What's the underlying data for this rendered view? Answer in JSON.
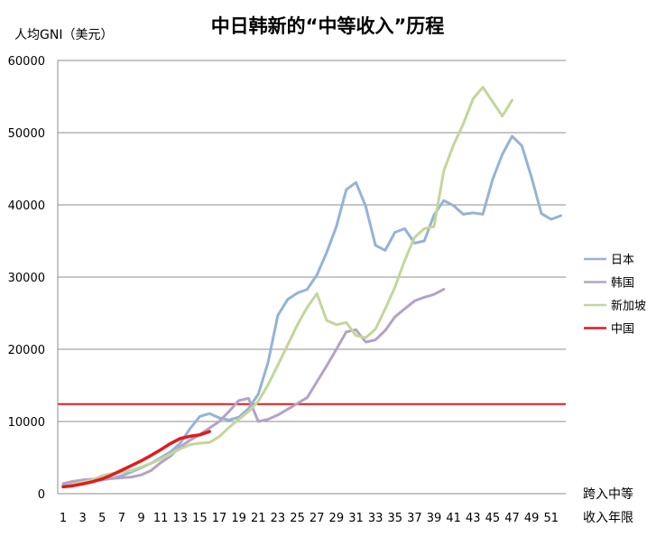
{
  "chart_data": {
    "type": "line",
    "title": "中日韩新的“中等收入”历程",
    "ylabel": "人均GNI（美元）",
    "xlabel_lines": [
      "跨入中等",
      "收入年限"
    ],
    "ylim": [
      0,
      60000
    ],
    "yticks": [
      0,
      10000,
      20000,
      30000,
      40000,
      50000,
      60000
    ],
    "xlim": [
      1,
      52
    ],
    "xticks": [
      1,
      3,
      5,
      7,
      9,
      11,
      13,
      15,
      17,
      19,
      21,
      23,
      25,
      27,
      29,
      31,
      33,
      35,
      37,
      39,
      41,
      43,
      45,
      47,
      49,
      51
    ],
    "grid": true,
    "legend_position": "right",
    "reference_line": {
      "y": 12400,
      "color": "#e31a1c"
    },
    "series": [
      {
        "name": "日本",
        "color": "#95b3d7",
        "x": [
          1,
          2,
          3,
          4,
          5,
          6,
          7,
          8,
          9,
          10,
          11,
          12,
          13,
          14,
          15,
          16,
          17,
          18,
          19,
          20,
          21,
          22,
          23,
          24,
          25,
          26,
          27,
          28,
          29,
          30,
          31,
          32,
          33,
          34,
          35,
          36,
          37,
          38,
          39,
          40,
          41,
          42,
          43,
          44,
          45,
          46,
          47,
          48,
          49,
          50,
          51,
          52
        ],
        "values": [
          1200,
          1500,
          1700,
          1800,
          1900,
          2100,
          2500,
          3000,
          3600,
          4200,
          5000,
          5800,
          7000,
          9000,
          10700,
          11100,
          10500,
          10200,
          10600,
          11800,
          13800,
          18200,
          24700,
          26900,
          27800,
          28300,
          30300,
          33400,
          37000,
          42100,
          43100,
          39800,
          34400,
          33700,
          36200,
          36700,
          34700,
          35000,
          38600,
          40600,
          39900,
          38700,
          38900,
          38700,
          43500,
          47000,
          49500,
          48200,
          43800,
          38800,
          38000,
          38500
        ]
      },
      {
        "name": "韩国",
        "color": "#b3a2c7",
        "x": [
          1,
          2,
          3,
          4,
          5,
          6,
          7,
          8,
          9,
          10,
          11,
          12,
          13,
          14,
          15,
          16,
          17,
          18,
          19,
          20,
          21,
          22,
          23,
          24,
          25,
          26,
          27,
          28,
          29,
          30,
          31,
          32,
          33,
          34,
          35,
          36,
          37,
          38,
          39,
          40
        ],
        "values": [
          1400,
          1700,
          1900,
          2000,
          2100,
          2100,
          2200,
          2300,
          2600,
          3200,
          4300,
          5200,
          6500,
          7400,
          8200,
          9100,
          10000,
          11400,
          12900,
          13200,
          10000,
          10300,
          10900,
          11700,
          12500,
          13300,
          15500,
          17700,
          20000,
          22400,
          22700,
          21000,
          21300,
          22600,
          24500,
          25600,
          26700,
          27200,
          27600,
          28300
        ]
      },
      {
        "name": "新加坡",
        "color": "#c3d69b",
        "x": [
          1,
          2,
          3,
          4,
          5,
          6,
          7,
          8,
          9,
          10,
          11,
          12,
          13,
          14,
          15,
          16,
          17,
          18,
          19,
          20,
          21,
          22,
          23,
          24,
          25,
          26,
          27,
          28,
          29,
          30,
          31,
          32,
          33,
          34,
          35,
          36,
          37,
          38,
          39,
          40,
          41,
          42,
          43,
          44,
          45,
          46,
          47
        ],
        "values": [
          1000,
          1300,
          1600,
          1900,
          2500,
          2800,
          3000,
          3200,
          3700,
          4200,
          4800,
          5500,
          6200,
          6800,
          7000,
          7100,
          7900,
          9200,
          10300,
          11400,
          12800,
          15100,
          17800,
          20600,
          23400,
          25800,
          27700,
          24000,
          23400,
          23700,
          21900,
          21600,
          22800,
          25600,
          28600,
          32300,
          35500,
          36700,
          37000,
          44700,
          48300,
          51200,
          54700,
          56300,
          54300,
          52300,
          54500
        ]
      },
      {
        "name": "中国",
        "color": "#e31a1c",
        "x": [
          1,
          2,
          3,
          4,
          5,
          6,
          7,
          8,
          9,
          10,
          11,
          12,
          13,
          14,
          15,
          16
        ],
        "values": [
          950,
          1100,
          1350,
          1650,
          2050,
          2600,
          3250,
          3900,
          4550,
          5300,
          6100,
          6950,
          7650,
          7950,
          8150,
          8600
        ]
      }
    ]
  }
}
